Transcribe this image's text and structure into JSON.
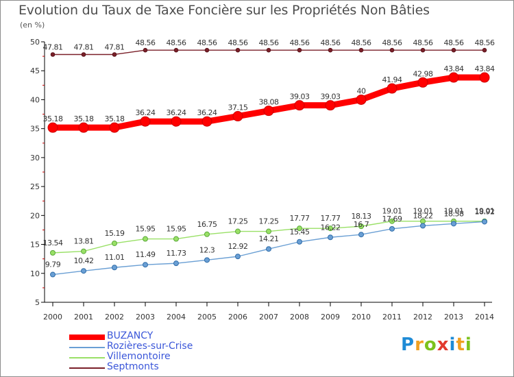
{
  "header": {
    "title": "Evolution du Taux de Taxe Foncière sur les Propriétés Non Bâties",
    "subtitle": "(en %)"
  },
  "logo": {
    "letters": [
      "P",
      "r",
      "o",
      "x",
      "i",
      "t",
      "i"
    ],
    "colors": [
      "#1e8bd6",
      "#f0a020",
      "#7cc21e",
      "#e23a2e",
      "#1e8bd6",
      "#f0a020",
      "#7cc21e"
    ]
  },
  "chart_data": {
    "type": "line",
    "title": "Evolution du Taux de Taxe Foncière sur les Propriétés Non Bâties",
    "ylabel": "(en %)",
    "xlabel": "",
    "ylim": [
      5,
      50
    ],
    "yticks": [
      5,
      10,
      15,
      20,
      25,
      30,
      35,
      40,
      45,
      50
    ],
    "x": [
      "2000",
      "2001",
      "2002",
      "2003",
      "2004",
      "2005",
      "2006",
      "2007",
      "2008",
      "2009",
      "2010",
      "2011",
      "2012",
      "2013",
      "2014"
    ],
    "grid": false,
    "legend_position": "bottom-left",
    "series": [
      {
        "name": "BUZANCY",
        "color": "#ff0000",
        "values": [
          35.18,
          35.18,
          35.18,
          36.24,
          36.24,
          36.24,
          37.15,
          38.08,
          39.03,
          39.03,
          40,
          41.94,
          42.98,
          43.84,
          43.84
        ],
        "labels": [
          "35.18",
          "35.18",
          "35.18",
          "36.24",
          "36.24",
          "36.24",
          "37.15",
          "38.08",
          "39.03",
          "39.03",
          "40",
          "41.94",
          "42.98",
          "43.84",
          "43.84"
        ]
      },
      {
        "name": "Rozières-sur-Crise",
        "color": "#6a9fd4",
        "values": [
          9.79,
          10.42,
          11.01,
          11.49,
          11.73,
          12.3,
          12.92,
          14.21,
          15.45,
          16.22,
          16.7,
          17.69,
          18.22,
          18.58,
          18.92
        ],
        "labels": [
          "9.79",
          "10.42",
          "11.01",
          "11.49",
          "11.73",
          "12.3",
          "12.92",
          "14.21",
          "15.45",
          "16.22",
          "16.7",
          "17.69",
          "18.22",
          "18.58",
          "18.92"
        ]
      },
      {
        "name": "Villemontoire",
        "color": "#99e066",
        "values": [
          13.54,
          13.81,
          15.19,
          15.95,
          15.95,
          16.75,
          17.25,
          17.25,
          17.77,
          17.77,
          18.13,
          19.01,
          19.01,
          19.01,
          19.01
        ],
        "labels": [
          "13.54",
          "13.81",
          "15.19",
          "15.95",
          "15.95",
          "16.75",
          "17.25",
          "17.25",
          "17.77",
          "17.77",
          "18.13",
          "19.01",
          "19.01",
          "19.01",
          "19.01"
        ]
      },
      {
        "name": "Septmonts",
        "color": "#7a1f28",
        "values": [
          47.81,
          47.81,
          47.81,
          48.56,
          48.56,
          48.56,
          48.56,
          48.56,
          48.56,
          48.56,
          48.56,
          48.56,
          48.56,
          48.56,
          48.56
        ],
        "labels": [
          "47.81",
          "47.81",
          "47.81",
          "48.56",
          "48.56",
          "48.56",
          "48.56",
          "48.56",
          "48.56",
          "48.56",
          "48.56",
          "48.56",
          "48.56",
          "48.56",
          "48.56"
        ]
      }
    ]
  }
}
